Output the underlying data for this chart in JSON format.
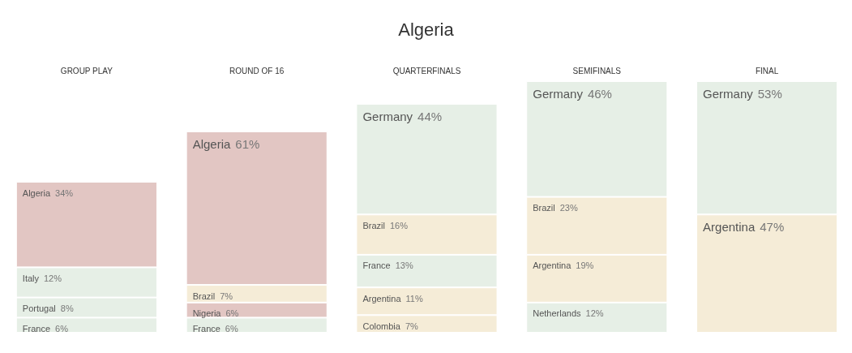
{
  "chart_data": {
    "type": "bar",
    "title": "Algeria",
    "categories": [
      "GROUP PLAY",
      "ROUND OF 16",
      "QUARTERFINALS",
      "SEMIFINALS",
      "FINAL"
    ],
    "stacked": true,
    "tick_labels": "x",
    "series": [
      {
        "name": "Netherlands",
        "color": "#e6efe6",
        "values": [
          null,
          null,
          null,
          12,
          null
        ],
        "value_labels": [
          null,
          null,
          null,
          "12%",
          null
        ]
      },
      {
        "name": "Colombia",
        "color": "#f5ecd7",
        "values": [
          null,
          null,
          7,
          null,
          null
        ],
        "value_labels": [
          null,
          null,
          "7%",
          null,
          null
        ]
      },
      {
        "name": "Argentina",
        "color": "#f5ecd7",
        "values": [
          null,
          null,
          11,
          19,
          47
        ],
        "value_labels": [
          null,
          null,
          "11%",
          "19%",
          "47%"
        ]
      },
      {
        "name": "France",
        "color": "#e6efe6",
        "values": [
          6,
          6,
          13,
          null,
          null
        ],
        "value_labels": [
          "6%",
          "6%",
          "13%",
          null,
          null
        ]
      },
      {
        "name": "Nigeria",
        "color": "#e2c6c3",
        "values": [
          null,
          6,
          null,
          null,
          null
        ],
        "value_labels": [
          null,
          "6%",
          null,
          null,
          null
        ]
      },
      {
        "name": "Brazil",
        "color": "#f5ecd7",
        "values": [
          null,
          7,
          16,
          23,
          null
        ],
        "value_labels": [
          null,
          "7%",
          "16%",
          "23%",
          null
        ]
      },
      {
        "name": "Portugal",
        "color": "#e6efe6",
        "values": [
          8,
          null,
          null,
          null,
          null
        ],
        "value_labels": [
          "8%",
          null,
          null,
          null,
          null
        ]
      },
      {
        "name": "Italy",
        "color": "#e6efe6",
        "values": [
          12,
          null,
          null,
          null,
          null
        ],
        "value_labels": [
          "12%",
          null,
          null,
          null,
          null
        ]
      },
      {
        "name": "Algeria",
        "color": "#e2c6c3",
        "values": [
          34,
          61,
          null,
          null,
          null
        ],
        "value_labels": [
          "34%",
          "61%",
          null,
          null,
          null
        ]
      },
      {
        "name": "Germany",
        "color": "#e6efe6",
        "values": [
          null,
          null,
          44,
          46,
          53
        ],
        "value_labels": [
          null,
          null,
          "44%",
          "46%",
          "53%"
        ]
      }
    ]
  }
}
